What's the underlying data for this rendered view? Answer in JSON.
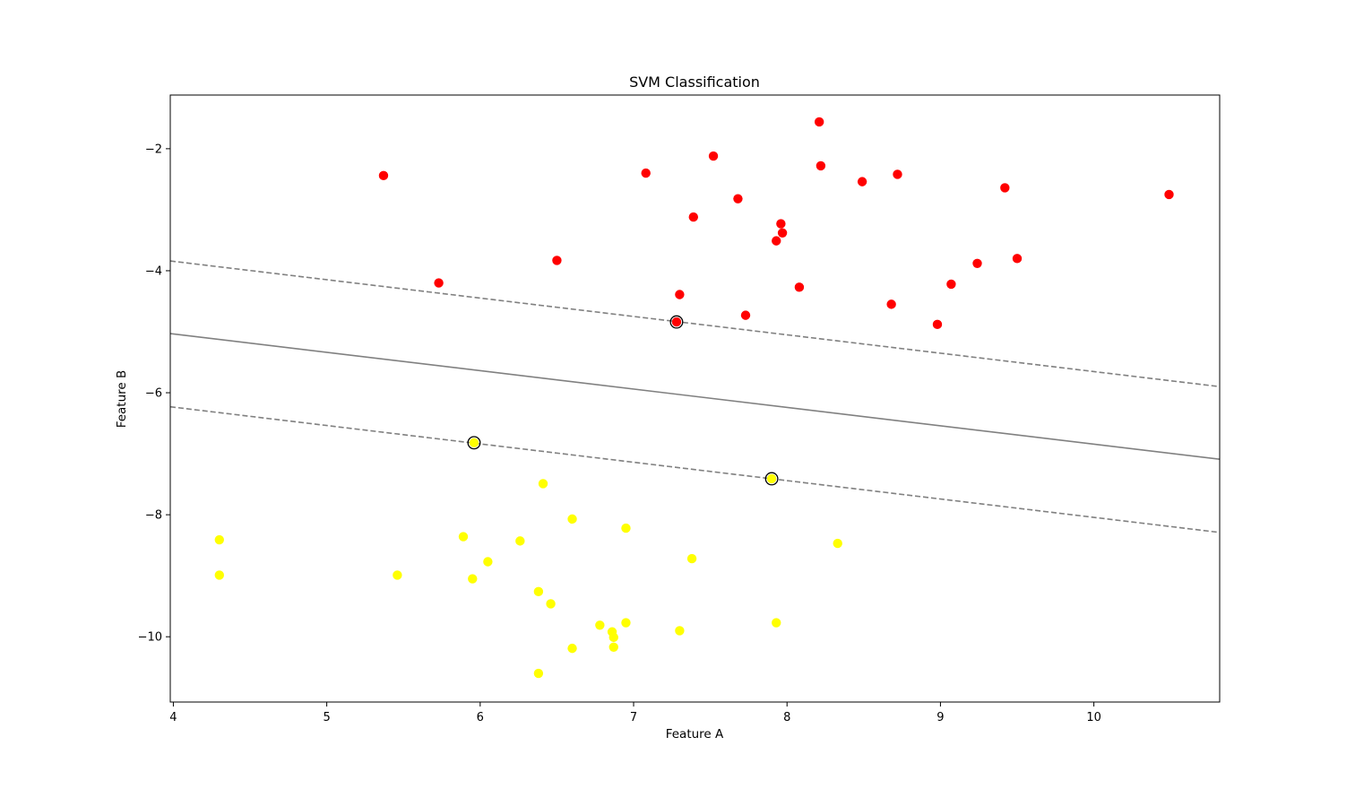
{
  "chart_data": {
    "type": "scatter",
    "title": "SVM Classification",
    "xlabel": "Feature A",
    "ylabel": "Feature B",
    "xlim": [
      3.98,
      10.82
    ],
    "ylim": [
      -11.07,
      -1.12
    ],
    "xticks": [
      4,
      5,
      6,
      7,
      8,
      9,
      10
    ],
    "yticks": [
      -2,
      -4,
      -6,
      -8,
      -10
    ],
    "tick_labels": {
      "x": [
        "4",
        "5",
        "6",
        "7",
        "8",
        "9",
        "10"
      ],
      "y": [
        "−2",
        "−4",
        "−6",
        "−8",
        "−10"
      ]
    },
    "grid": false,
    "series": [
      {
        "color": "#ff0000",
        "points": [
          [
            5.37,
            -2.44
          ],
          [
            5.73,
            -4.2
          ],
          [
            6.5,
            -3.83
          ],
          [
            7.08,
            -2.4
          ],
          [
            7.3,
            -4.39
          ],
          [
            7.39,
            -3.12
          ],
          [
            7.52,
            -2.12
          ],
          [
            7.68,
            -2.82
          ],
          [
            7.73,
            -4.73
          ],
          [
            7.93,
            -3.51
          ],
          [
            7.96,
            -3.23
          ],
          [
            7.97,
            -3.38
          ],
          [
            8.08,
            -4.27
          ],
          [
            8.21,
            -1.56
          ],
          [
            8.22,
            -2.28
          ],
          [
            8.49,
            -2.54
          ],
          [
            8.68,
            -4.55
          ],
          [
            8.72,
            -2.42
          ],
          [
            8.98,
            -4.88
          ],
          [
            9.07,
            -4.22
          ],
          [
            9.24,
            -3.88
          ],
          [
            9.42,
            -2.64
          ],
          [
            9.5,
            -3.8
          ],
          [
            10.49,
            -2.75
          ],
          [
            7.28,
            -4.84
          ]
        ]
      },
      {
        "color": "#ffff00",
        "points": [
          [
            4.3,
            -8.41
          ],
          [
            4.3,
            -8.99
          ],
          [
            5.46,
            -8.99
          ],
          [
            5.89,
            -8.36
          ],
          [
            5.95,
            -9.05
          ],
          [
            6.05,
            -8.77
          ],
          [
            6.26,
            -8.43
          ],
          [
            6.38,
            -9.26
          ],
          [
            6.38,
            -10.6
          ],
          [
            6.41,
            -7.49
          ],
          [
            6.46,
            -9.46
          ],
          [
            6.6,
            -8.07
          ],
          [
            6.6,
            -10.19
          ],
          [
            6.78,
            -9.81
          ],
          [
            6.86,
            -9.92
          ],
          [
            6.87,
            -10.01
          ],
          [
            6.87,
            -10.17
          ],
          [
            6.95,
            -8.22
          ],
          [
            6.95,
            -9.77
          ],
          [
            7.3,
            -9.9
          ],
          [
            7.38,
            -8.72
          ],
          [
            7.93,
            -9.77
          ],
          [
            8.33,
            -8.47
          ],
          [
            5.96,
            -6.82
          ],
          [
            7.9,
            -7.41
          ]
        ]
      }
    ],
    "support_vectors": [
      [
        7.28,
        -4.84
      ],
      [
        5.96,
        -6.82
      ],
      [
        7.9,
        -7.41
      ]
    ],
    "decision_boundary": [
      [
        3.98,
        -5.03
      ],
      [
        10.82,
        -7.09
      ]
    ],
    "margin_lines": [
      [
        [
          3.98,
          -3.84
        ],
        [
          10.82,
          -5.9
        ]
      ],
      [
        [
          3.98,
          -6.23
        ],
        [
          10.82,
          -8.29
        ]
      ]
    ],
    "line_color": "#808080",
    "support_vector_edge_color": "#000000"
  }
}
